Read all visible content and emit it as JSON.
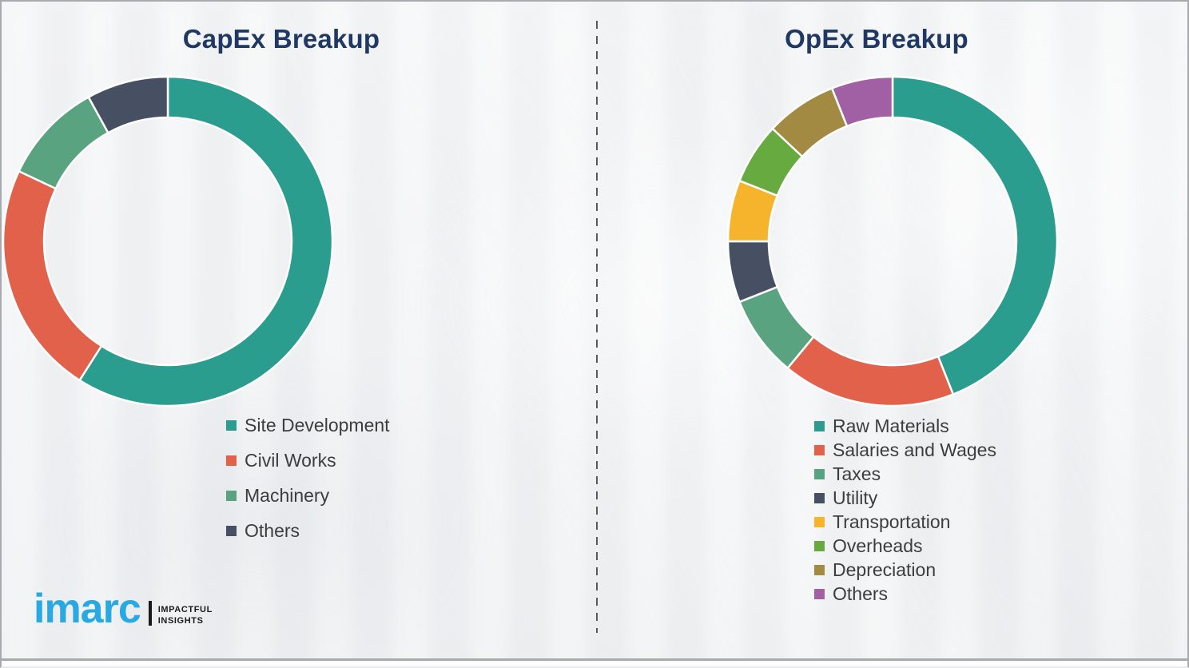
{
  "logo": {
    "brand": "imarc",
    "tagline_line1": "IMPACTFUL",
    "tagline_line2": "INSIGHTS",
    "brand_color": "#29a9e1"
  },
  "chart_data": [
    {
      "type": "pie",
      "donut": true,
      "title": "CapEx Breakup",
      "title_color": "#1f3864",
      "categories": [
        "Site Development",
        "Civil Works",
        "Machinery",
        "Others"
      ],
      "values": [
        59,
        23,
        10,
        8
      ],
      "colors": [
        "#2a9d8f",
        "#e2614a",
        "#5aa380",
        "#474f63"
      ],
      "start_angle_deg": 0,
      "direction": "clockwise",
      "legend_position": "below-left",
      "data_labels": "none"
    },
    {
      "type": "pie",
      "donut": true,
      "title": "OpEx Breakup",
      "title_color": "#1f3864",
      "categories": [
        "Raw Materials",
        "Salaries and Wages",
        "Taxes",
        "Utility",
        "Transportation",
        "Overheads",
        "Depreciation",
        "Others"
      ],
      "values": [
        44,
        17,
        8,
        6,
        6,
        6,
        7,
        6
      ],
      "colors": [
        "#2a9d8f",
        "#e2614a",
        "#5aa380",
        "#474f63",
        "#f6b42c",
        "#67aa3f",
        "#a28a42",
        "#a160a3"
      ],
      "start_angle_deg": 0,
      "direction": "clockwise",
      "legend_position": "below-left",
      "data_labels": "none"
    }
  ]
}
